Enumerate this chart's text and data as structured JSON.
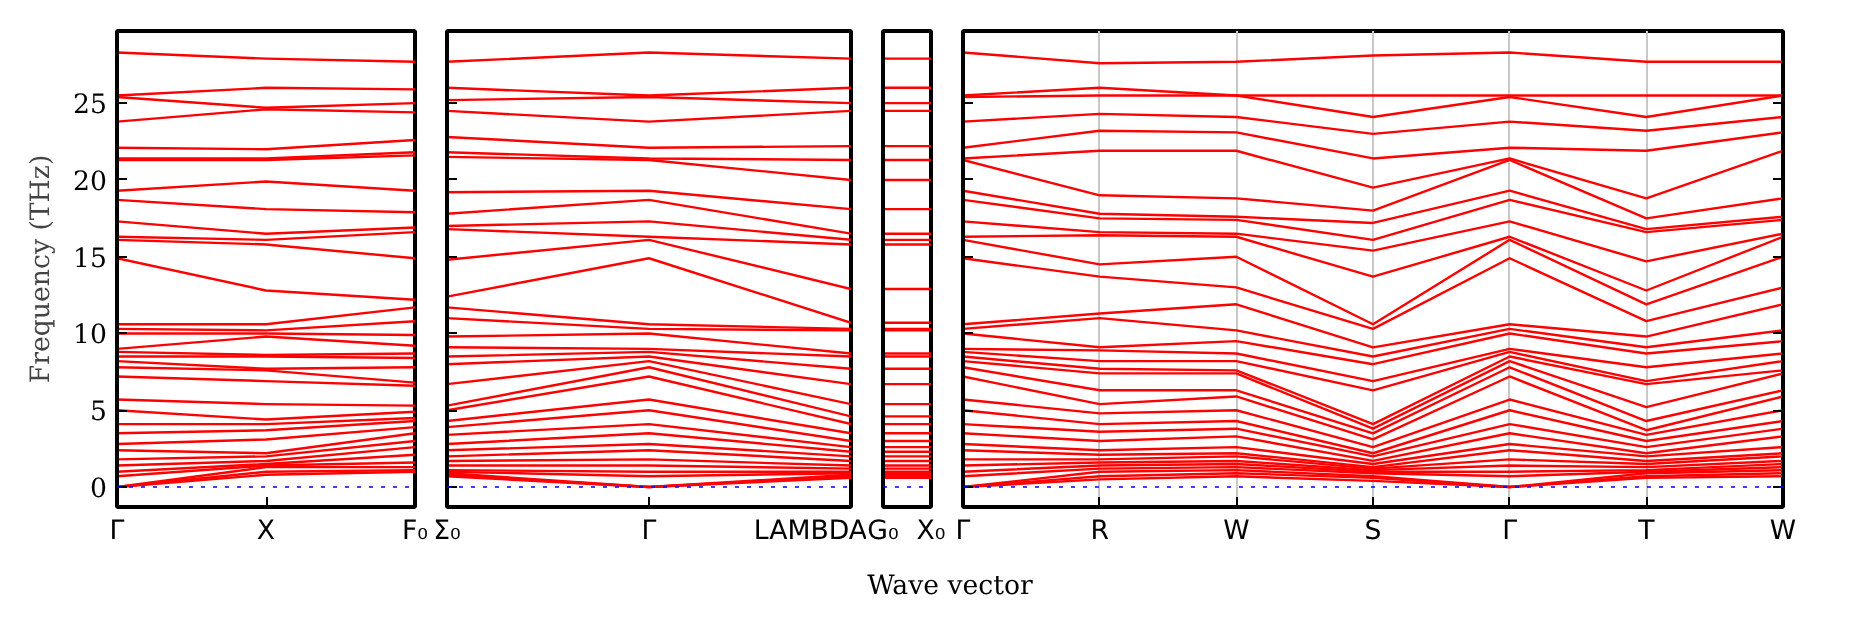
{
  "chart_data": [
    {
      "type": "line",
      "ylabel": "Frequency (THz)",
      "categories": [
        "Γ",
        "X",
        "F₀"
      ],
      "ylim": [
        -1.3,
        29.7
      ],
      "yticks": [
        0,
        5,
        10,
        15,
        20,
        25
      ],
      "ref_lines": [
        {
          "axis": "y",
          "value": 0,
          "color": "#0000ff",
          "line_style": "dotted"
        }
      ],
      "series": [
        {
          "color": "#ff0000",
          "values": [
            28.3,
            27.9,
            27.7
          ]
        },
        {
          "color": "#ff0000",
          "values": [
            25.5,
            26.0,
            25.9
          ]
        },
        {
          "color": "#ff0000",
          "values": [
            25.4,
            24.7,
            25.0
          ]
        },
        {
          "color": "#ff0000",
          "values": [
            23.8,
            24.6,
            24.4
          ]
        },
        {
          "color": "#ff0000",
          "values": [
            22.1,
            22.0,
            22.6
          ]
        },
        {
          "color": "#ff0000",
          "values": [
            21.4,
            21.4,
            21.8
          ]
        },
        {
          "color": "#ff0000",
          "values": [
            21.3,
            21.3,
            21.6
          ]
        },
        {
          "color": "#ff0000",
          "values": [
            19.3,
            19.9,
            19.3
          ]
        },
        {
          "color": "#ff0000",
          "values": [
            18.7,
            18.1,
            17.9
          ]
        },
        {
          "color": "#ff0000",
          "values": [
            17.3,
            16.5,
            16.9
          ]
        },
        {
          "color": "#ff0000",
          "values": [
            16.3,
            16.1,
            16.6
          ]
        },
        {
          "color": "#ff0000",
          "values": [
            16.1,
            15.8,
            14.9
          ]
        },
        {
          "color": "#ff0000",
          "values": [
            14.9,
            12.8,
            12.2
          ]
        },
        {
          "color": "#ff0000",
          "values": [
            10.6,
            10.6,
            11.7
          ]
        },
        {
          "color": "#ff0000",
          "values": [
            10.3,
            10.2,
            10.8
          ]
        },
        {
          "color": "#ff0000",
          "values": [
            10.0,
            10.0,
            9.9
          ]
        },
        {
          "color": "#ff0000",
          "values": [
            9.0,
            9.8,
            9.2
          ]
        },
        {
          "color": "#ff0000",
          "values": [
            8.8,
            8.6,
            8.7
          ]
        },
        {
          "color": "#ff0000",
          "values": [
            8.5,
            8.5,
            8.4
          ]
        },
        {
          "color": "#ff0000",
          "values": [
            8.2,
            7.7,
            7.8
          ]
        },
        {
          "color": "#ff0000",
          "values": [
            7.8,
            7.6,
            6.8
          ]
        },
        {
          "color": "#ff0000",
          "values": [
            7.2,
            6.9,
            6.6
          ]
        },
        {
          "color": "#ff0000",
          "values": [
            5.7,
            5.4,
            5.3
          ]
        },
        {
          "color": "#ff0000",
          "values": [
            5.0,
            4.4,
            4.9
          ]
        },
        {
          "color": "#ff0000",
          "values": [
            4.1,
            4.1,
            4.5
          ]
        },
        {
          "color": "#ff0000",
          "values": [
            3.5,
            3.7,
            4.3
          ]
        },
        {
          "color": "#ff0000",
          "values": [
            2.8,
            3.1,
            3.9
          ]
        },
        {
          "color": "#ff0000",
          "values": [
            2.4,
            2.2,
            3.5
          ]
        },
        {
          "color": "#ff0000",
          "values": [
            1.8,
            2.0,
            3.0
          ]
        },
        {
          "color": "#ff0000",
          "values": [
            1.4,
            1.7,
            2.6
          ]
        },
        {
          "color": "#ff0000",
          "values": [
            1.0,
            1.5,
            2.1
          ]
        },
        {
          "color": "#ff0000",
          "values": [
            0.7,
            1.4,
            1.6
          ]
        },
        {
          "color": "#ff0000",
          "values": [
            0,
            1.3,
            1.3
          ]
        },
        {
          "color": "#ff0000",
          "values": [
            0,
            1.0,
            1.1
          ]
        },
        {
          "color": "#ff0000",
          "values": [
            0,
            0.8,
            1.0
          ]
        }
      ]
    },
    {
      "type": "line",
      "categories": [
        "Σ₀",
        "Γ",
        "LAMBDA"
      ],
      "ylim": [
        -1.3,
        29.7
      ],
      "yticks": [
        {
          "value": 0,
          "label": null
        },
        {
          "value": 5,
          "label": null
        },
        {
          "value": 10,
          "label": null
        },
        {
          "value": 15,
          "label": null
        },
        {
          "value": 20,
          "label": null
        },
        {
          "value": 25,
          "label": null
        }
      ],
      "tick_labels": "x",
      "ref_lines": [
        {
          "axis": "y",
          "value": 0,
          "color": "#0000ff",
          "line_style": "dotted"
        }
      ],
      "series": [
        {
          "color": "#ff0000",
          "values": [
            27.7,
            28.3,
            27.9
          ]
        },
        {
          "color": "#ff0000",
          "values": [
            26.0,
            25.5,
            26.0
          ]
        },
        {
          "color": "#ff0000",
          "values": [
            25.2,
            25.4,
            25.0
          ]
        },
        {
          "color": "#ff0000",
          "values": [
            24.5,
            23.8,
            24.5
          ]
        },
        {
          "color": "#ff0000",
          "values": [
            22.8,
            22.1,
            22.2
          ]
        },
        {
          "color": "#ff0000",
          "values": [
            21.8,
            21.4,
            21.3
          ]
        },
        {
          "color": "#ff0000",
          "values": [
            21.5,
            21.3,
            20.0
          ]
        },
        {
          "color": "#ff0000",
          "values": [
            19.2,
            19.3,
            18.1
          ]
        },
        {
          "color": "#ff0000",
          "values": [
            17.8,
            18.7,
            16.5
          ]
        },
        {
          "color": "#ff0000",
          "values": [
            17.0,
            17.3,
            16.1
          ]
        },
        {
          "color": "#ff0000",
          "values": [
            16.8,
            16.3,
            15.8
          ]
        },
        {
          "color": "#ff0000",
          "values": [
            14.8,
            16.1,
            12.9
          ]
        },
        {
          "color": "#ff0000",
          "values": [
            12.4,
            14.9,
            10.7
          ]
        },
        {
          "color": "#ff0000",
          "values": [
            11.7,
            10.6,
            10.3
          ]
        },
        {
          "color": "#ff0000",
          "values": [
            11.0,
            10.3,
            10.2
          ]
        },
        {
          "color": "#ff0000",
          "values": [
            9.8,
            10.0,
            8.7
          ]
        },
        {
          "color": "#ff0000",
          "values": [
            9.1,
            9.0,
            8.5
          ]
        },
        {
          "color": "#ff0000",
          "values": [
            8.5,
            8.8,
            7.7
          ]
        },
        {
          "color": "#ff0000",
          "values": [
            8.0,
            8.5,
            6.7
          ]
        },
        {
          "color": "#ff0000",
          "values": [
            6.7,
            8.2,
            5.4
          ]
        },
        {
          "color": "#ff0000",
          "values": [
            5.3,
            7.8,
            4.6
          ]
        },
        {
          "color": "#ff0000",
          "values": [
            5.0,
            7.2,
            4.1
          ]
        },
        {
          "color": "#ff0000",
          "values": [
            4.3,
            5.7,
            3.5
          ]
        },
        {
          "color": "#ff0000",
          "values": [
            3.9,
            5.0,
            3.0
          ]
        },
        {
          "color": "#ff0000",
          "values": [
            3.4,
            4.1,
            2.6
          ]
        },
        {
          "color": "#ff0000",
          "values": [
            2.8,
            3.5,
            2.3
          ]
        },
        {
          "color": "#ff0000",
          "values": [
            2.4,
            2.8,
            2.0
          ]
        },
        {
          "color": "#ff0000",
          "values": [
            2.0,
            2.4,
            1.7
          ]
        },
        {
          "color": "#ff0000",
          "values": [
            1.7,
            1.8,
            1.4
          ]
        },
        {
          "color": "#ff0000",
          "values": [
            1.4,
            1.4,
            1.2
          ]
        },
        {
          "color": "#ff0000",
          "values": [
            1.1,
            1.0,
            1.0
          ]
        },
        {
          "color": "#ff0000",
          "values": [
            1.0,
            0.7,
            0.9
          ]
        },
        {
          "color": "#ff0000",
          "values": [
            0.9,
            0,
            0.8
          ]
        },
        {
          "color": "#ff0000",
          "values": [
            0.8,
            0,
            0.7
          ]
        },
        {
          "color": "#ff0000",
          "values": [
            0.7,
            0,
            0.6
          ]
        }
      ]
    },
    {
      "type": "line",
      "categories": [
        "G₀",
        "X₀"
      ],
      "ylim": [
        -1.3,
        29.7
      ],
      "tick_labels": "x",
      "ref_lines": [
        {
          "axis": "y",
          "value": 0,
          "color": "#0000ff",
          "line_style": "dotted"
        }
      ],
      "series": [
        {
          "color": "#ff0000",
          "values": [
            27.9,
            27.9
          ]
        },
        {
          "color": "#ff0000",
          "values": [
            26.0,
            26.0
          ]
        },
        {
          "color": "#ff0000",
          "values": [
            25.0,
            25.0
          ]
        },
        {
          "color": "#ff0000",
          "values": [
            24.5,
            24.5
          ]
        },
        {
          "color": "#ff0000",
          "values": [
            22.2,
            22.2
          ]
        },
        {
          "color": "#ff0000",
          "values": [
            21.3,
            21.3
          ]
        },
        {
          "color": "#ff0000",
          "values": [
            20.0,
            20.0
          ]
        },
        {
          "color": "#ff0000",
          "values": [
            18.1,
            18.1
          ]
        },
        {
          "color": "#ff0000",
          "values": [
            16.5,
            16.5
          ]
        },
        {
          "color": "#ff0000",
          "values": [
            16.1,
            16.1
          ]
        },
        {
          "color": "#ff0000",
          "values": [
            15.8,
            15.8
          ]
        },
        {
          "color": "#ff0000",
          "values": [
            12.9,
            12.9
          ]
        },
        {
          "color": "#ff0000",
          "values": [
            10.7,
            10.7
          ]
        },
        {
          "color": "#ff0000",
          "values": [
            10.3,
            10.3
          ]
        },
        {
          "color": "#ff0000",
          "values": [
            10.2,
            10.2
          ]
        },
        {
          "color": "#ff0000",
          "values": [
            8.7,
            8.7
          ]
        },
        {
          "color": "#ff0000",
          "values": [
            8.5,
            8.5
          ]
        },
        {
          "color": "#ff0000",
          "values": [
            7.7,
            7.7
          ]
        },
        {
          "color": "#ff0000",
          "values": [
            6.7,
            6.7
          ]
        },
        {
          "color": "#ff0000",
          "values": [
            5.4,
            5.4
          ]
        },
        {
          "color": "#ff0000",
          "values": [
            4.6,
            4.6
          ]
        },
        {
          "color": "#ff0000",
          "values": [
            4.1,
            4.1
          ]
        },
        {
          "color": "#ff0000",
          "values": [
            3.5,
            3.5
          ]
        },
        {
          "color": "#ff0000",
          "values": [
            3.0,
            3.0
          ]
        },
        {
          "color": "#ff0000",
          "values": [
            2.6,
            2.6
          ]
        },
        {
          "color": "#ff0000",
          "values": [
            2.3,
            2.3
          ]
        },
        {
          "color": "#ff0000",
          "values": [
            2.0,
            2.0
          ]
        },
        {
          "color": "#ff0000",
          "values": [
            1.7,
            1.7
          ]
        },
        {
          "color": "#ff0000",
          "values": [
            1.4,
            1.4
          ]
        },
        {
          "color": "#ff0000",
          "values": [
            1.2,
            1.2
          ]
        },
        {
          "color": "#ff0000",
          "values": [
            1.0,
            1.0
          ]
        },
        {
          "color": "#ff0000",
          "values": [
            0.9,
            0.9
          ]
        },
        {
          "color": "#ff0000",
          "values": [
            0.8,
            0.8
          ]
        },
        {
          "color": "#ff0000",
          "values": [
            0.7,
            0.7
          ]
        },
        {
          "color": "#ff0000",
          "values": [
            0.6,
            0.6
          ]
        }
      ]
    },
    {
      "type": "line",
      "categories": [
        "Γ",
        "R",
        "W",
        "S",
        "Γ",
        "T",
        "W"
      ],
      "xlabel": "Wave vector",
      "ylim": [
        -1.3,
        29.7
      ],
      "yticks": [
        {
          "value": 0,
          "label": null
        },
        {
          "value": 5,
          "label": null
        },
        {
          "value": 10,
          "label": null
        },
        {
          "value": 15,
          "label": null
        },
        {
          "value": 20,
          "label": null
        },
        {
          "value": 25,
          "label": null
        }
      ],
      "tick_labels": "x",
      "grid": "x",
      "ref_lines": [
        {
          "axis": "y",
          "value": 0,
          "color": "#0000ff",
          "line_style": "dotted"
        }
      ],
      "series": [
        {
          "color": "#ff0000",
          "values": [
            28.3,
            27.6,
            27.7,
            28.1,
            28.3,
            27.7,
            27.7
          ]
        },
        {
          "color": "#ff0000",
          "values": [
            25.5,
            26.0,
            25.5,
            25.5,
            25.5,
            25.5,
            25.5
          ]
        },
        {
          "color": "#ff0000",
          "values": [
            25.4,
            25.5,
            25.5,
            24.1,
            25.4,
            24.1,
            25.5
          ]
        },
        {
          "color": "#ff0000",
          "values": [
            23.8,
            24.3,
            24.1,
            23.0,
            23.8,
            23.2,
            24.1
          ]
        },
        {
          "color": "#ff0000",
          "values": [
            22.1,
            23.2,
            23.1,
            21.4,
            22.1,
            21.9,
            23.1
          ]
        },
        {
          "color": "#ff0000",
          "values": [
            21.4,
            21.9,
            21.9,
            19.5,
            21.4,
            18.8,
            21.9
          ]
        },
        {
          "color": "#ff0000",
          "values": [
            21.3,
            19.0,
            18.8,
            18.0,
            21.3,
            17.5,
            18.8
          ]
        },
        {
          "color": "#ff0000",
          "values": [
            19.3,
            17.8,
            17.6,
            17.2,
            19.3,
            16.8,
            17.6
          ]
        },
        {
          "color": "#ff0000",
          "values": [
            18.7,
            17.5,
            17.4,
            16.1,
            18.7,
            16.6,
            17.4
          ]
        },
        {
          "color": "#ff0000",
          "values": [
            17.3,
            16.6,
            16.5,
            15.4,
            17.3,
            14.7,
            16.5
          ]
        },
        {
          "color": "#ff0000",
          "values": [
            16.3,
            16.4,
            16.3,
            13.7,
            16.3,
            12.8,
            16.3
          ]
        },
        {
          "color": "#ff0000",
          "values": [
            16.1,
            14.5,
            15.0,
            10.6,
            16.1,
            11.9,
            15.0
          ]
        },
        {
          "color": "#ff0000",
          "values": [
            14.9,
            13.7,
            13.0,
            10.3,
            14.9,
            10.8,
            13.0
          ]
        },
        {
          "color": "#ff0000",
          "values": [
            10.6,
            11.3,
            11.9,
            9.1,
            10.6,
            9.8,
            11.9
          ]
        },
        {
          "color": "#ff0000",
          "values": [
            10.3,
            11.0,
            10.2,
            8.5,
            10.3,
            9.1,
            10.2
          ]
        },
        {
          "color": "#ff0000",
          "values": [
            10.0,
            9.1,
            9.5,
            8.0,
            10.0,
            8.7,
            9.5
          ]
        },
        {
          "color": "#ff0000",
          "values": [
            9.0,
            8.9,
            8.7,
            6.9,
            9.0,
            7.8,
            8.7
          ]
        },
        {
          "color": "#ff0000",
          "values": [
            8.8,
            8.2,
            8.2,
            6.3,
            8.8,
            6.9,
            8.2
          ]
        },
        {
          "color": "#ff0000",
          "values": [
            8.5,
            7.7,
            7.6,
            4.1,
            8.5,
            6.7,
            7.6
          ]
        },
        {
          "color": "#ff0000",
          "values": [
            8.2,
            7.4,
            7.4,
            3.8,
            8.2,
            5.2,
            7.4
          ]
        },
        {
          "color": "#ff0000",
          "values": [
            7.8,
            6.3,
            6.3,
            3.5,
            7.8,
            4.3,
            6.3
          ]
        },
        {
          "color": "#ff0000",
          "values": [
            7.2,
            5.4,
            5.9,
            3.1,
            7.2,
            3.7,
            5.9
          ]
        },
        {
          "color": "#ff0000",
          "values": [
            5.7,
            4.8,
            5.0,
            2.6,
            5.7,
            3.4,
            5.0
          ]
        },
        {
          "color": "#ff0000",
          "values": [
            5.0,
            4.1,
            4.3,
            2.2,
            5.0,
            3.0,
            4.3
          ]
        },
        {
          "color": "#ff0000",
          "values": [
            4.1,
            3.6,
            3.8,
            2.0,
            4.1,
            2.6,
            3.8
          ]
        },
        {
          "color": "#ff0000",
          "values": [
            3.5,
            3.0,
            3.3,
            1.7,
            3.5,
            2.2,
            3.3
          ]
        },
        {
          "color": "#ff0000",
          "values": [
            2.8,
            2.4,
            2.6,
            1.5,
            2.8,
            2.0,
            2.6
          ]
        },
        {
          "color": "#ff0000",
          "values": [
            2.4,
            2.1,
            2.2,
            1.3,
            2.4,
            1.7,
            2.2
          ]
        },
        {
          "color": "#ff0000",
          "values": [
            1.8,
            1.8,
            2.0,
            1.2,
            1.8,
            1.5,
            2.0
          ]
        },
        {
          "color": "#ff0000",
          "values": [
            1.4,
            1.6,
            1.7,
            1.1,
            1.4,
            1.3,
            1.7
          ]
        },
        {
          "color": "#ff0000",
          "values": [
            1.0,
            1.4,
            1.5,
            1.0,
            1.0,
            1.1,
            1.5
          ]
        },
        {
          "color": "#ff0000",
          "values": [
            0.7,
            1.2,
            1.3,
            0.9,
            0.7,
            1.0,
            1.3
          ]
        },
        {
          "color": "#ff0000",
          "values": [
            0,
            1.0,
            1.1,
            0.7,
            0,
            0.9,
            1.1
          ]
        },
        {
          "color": "#ff0000",
          "values": [
            0,
            0.7,
            0.9,
            0.6,
            0,
            0.7,
            0.9
          ]
        },
        {
          "color": "#ff0000",
          "values": [
            0,
            0.5,
            0.7,
            0.4,
            0,
            0.6,
            0.7
          ]
        }
      ]
    }
  ]
}
